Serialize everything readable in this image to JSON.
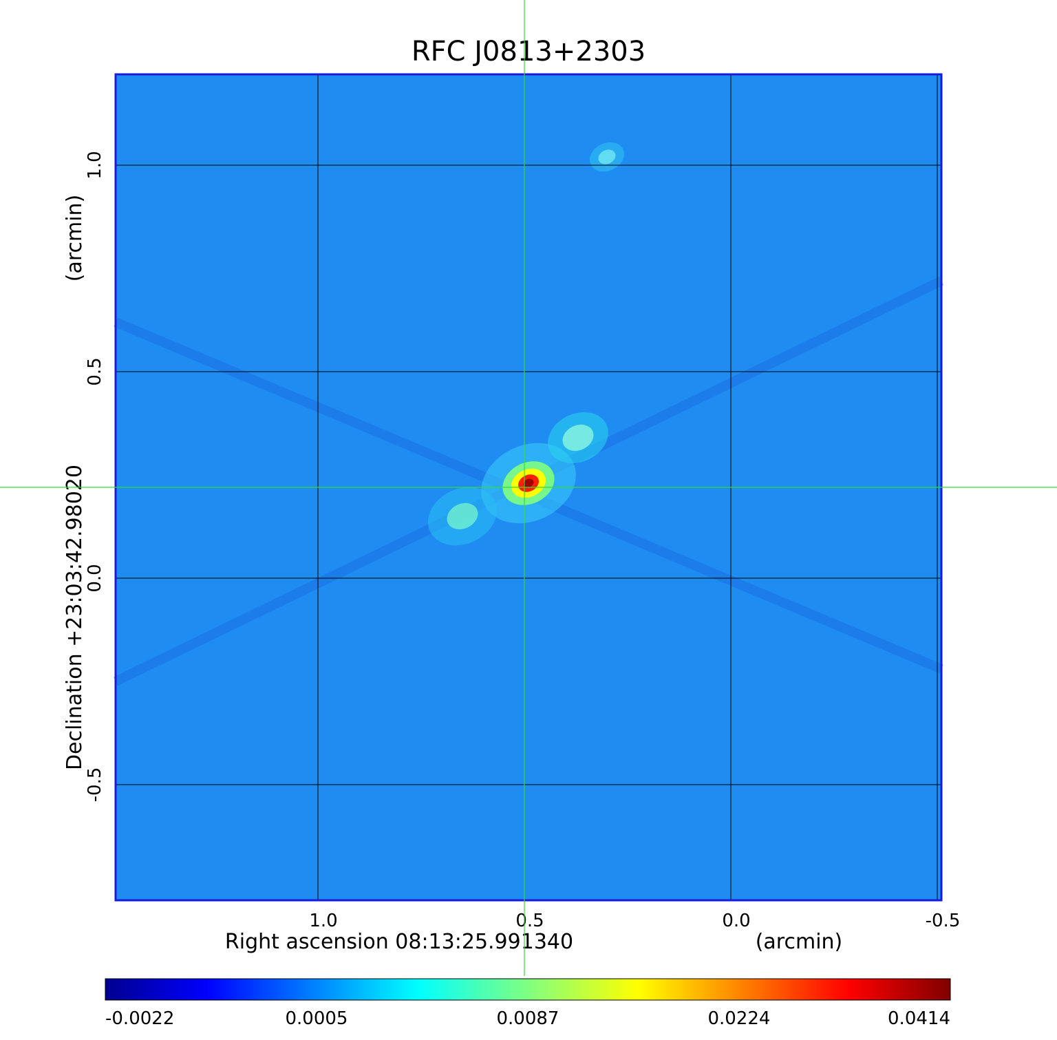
{
  "chart_data": {
    "type": "heatmap",
    "title": "RFC J0813+2303",
    "xlabel": "Right ascension  08:13:25.991340",
    "xunit": "(arcmin)",
    "ylabel": "Declination  +23:03:42.98020",
    "yunit": "(arcmin)",
    "x_ticks": [
      "1.0",
      "0.5",
      "0.0",
      "-0.5"
    ],
    "y_ticks": [
      "1.0",
      "0.5",
      "0.0",
      "-0.5"
    ],
    "x_tick_values": [
      1.0,
      0.5,
      0.0,
      -0.5
    ],
    "y_tick_values": [
      1.0,
      0.5,
      0.0,
      -0.5
    ],
    "xlim": [
      1.49,
      -0.51
    ],
    "ylim": [
      -0.78,
      1.22
    ],
    "grid": true,
    "crosshair": {
      "x": 0.5,
      "y": 0.22
    },
    "colorbar": {
      "colormap": "jet",
      "tick_labels": [
        "-0.0022",
        "0.0005",
        "0.0087",
        "0.0224",
        "0.0414"
      ],
      "range": [
        -0.0022,
        0.0414
      ]
    },
    "features": [
      {
        "x": 0.49,
        "y": 0.23,
        "peak": 0.0414
      },
      {
        "x": 0.37,
        "y": 0.34,
        "peak": 0.0087
      },
      {
        "x": 0.3,
        "y": 1.02,
        "peak": 0.0075
      },
      {
        "x": 0.65,
        "y": 0.15,
        "peak": 0.0087
      }
    ]
  },
  "colors": {
    "title": "#1111cc",
    "frame": "#1a1adf",
    "crosshair": "#33dd33",
    "grid": "#000000",
    "background": "#1f8cf2"
  }
}
